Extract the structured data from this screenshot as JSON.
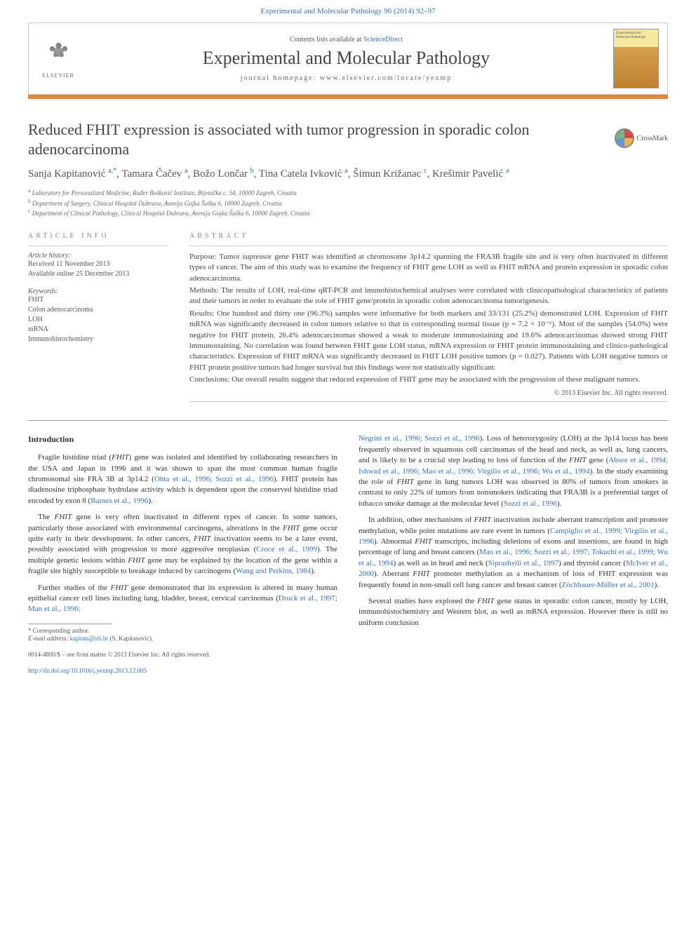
{
  "top_link": "Experimental and Molecular Pathology 96 (2014) 92–97",
  "header": {
    "contents_prefix": "Contents lists available at ",
    "contents_link": "ScienceDirect",
    "journal_name": "Experimental and Molecular Pathology",
    "homepage_label": "journal homepage: www.elsevier.com/locate/yexmp",
    "elsevier_label": "ELSEVIER",
    "cover_title": "Experimental and Molecular Pathology"
  },
  "article": {
    "title": "Reduced FHIT expression is associated with tumor progression in sporadic colon adenocarcinoma",
    "crossmark": "CrossMark",
    "authors_html": "Sanja Kapitanović <sup>a,*</sup>, Tamara Čačev <sup>a</sup>, Božo Lončar <sup>b</sup>, Tina Catela Ivković <sup>a</sup>, Šimun Križanac <sup>c</sup>, Krešimir Pavelić <sup>a</sup>",
    "affiliations": [
      {
        "sup": "a",
        "text": "Laboratory for Personalized Medicine, Ruđer Bošković Institute, Bijenička c. 54, 10000 Zagreb, Croatia"
      },
      {
        "sup": "b",
        "text": "Department of Surgery, Clinical Hospital Dubrava, Avenija Gojka Šuška 6, 10000 Zagreb, Croatia"
      },
      {
        "sup": "c",
        "text": "Department of Clinical Pathology, Clinical Hospital Dubrava, Avenija Gojka Šuška 6, 10000 Zagreb, Croatia"
      }
    ]
  },
  "meta": {
    "article_info_label": "article info",
    "abstract_label": "abstract",
    "history_label": "Article history:",
    "history": [
      "Received 11 November 2013",
      "Available online 25 December 2013"
    ],
    "keywords_label": "Keywords:",
    "keywords": [
      "FHIT",
      "Colon adenocarcinoma",
      "LOH",
      "mRNA",
      "Immunohistochemistry"
    ]
  },
  "abstract": {
    "purpose": "Purpose: Tumor supressor gene FHIT was identified at chromosome 3p14.2 spanning the FRA3B fragile site and is very often inactivated in different types of cancer. The aim of this study was to examine the frequency of FHIT gene LOH as well as FHIT mRNA and protein expression in sporadic colon adenocarcinoma.",
    "methods": "Methods: The results of LOH, real-time qRT-PCR and imunohistochemical analyses were correlated with clinicopathological characteristics of patients and their tumors in order to evaluate the role of FHIT gene/protein in sporadic colon adenocarcinoma tumorigenesis.",
    "results": "Results: One hundred and thirty one (96.3%) samples were informative for both markers and 33/131 (25.2%) demonstrated LOH. Expression of FHIT mRNA was significantly decreased in colon tumors relative to that in corresponding normal tissue (p = 7.2 × 10⁻⁶). Most of the samples (54.0%) were negative for FHIT protein, 26.4% adenocarcinomas showed a weak to moderate immunostaining and 19.6% adenocarcinomas showed strong FHIT immunostaining. No correlation was found between FHIT gene LOH status, mRNA expression or FHIT protein immunostaining and clinico-pathological characteristics. Expression of FHIT mRNA was significantly decreased in FHIT LOH positive tumors (p = 0.027). Patients with LOH negative tumors or FHIT protein positive tumors had longer survival but this findings were not statistically significant.",
    "conclusions": "Conclusions: Our overall results suggest that reduced expression of FHIT gene may be associated with the progression of these malignant tumors.",
    "copyright": "© 2013 Elsevier Inc. All rights reserved."
  },
  "body": {
    "intro_heading": "Introduction",
    "col1": {
      "p1_a": "Fragile histidine triad (",
      "p1_b": ") gene was isolated and identified by collaborating researchers in the USA and Japan in 1996 and it was shown to span the most common human fragile chromosomal site FRA 3B at 3p14.2 (",
      "p1_cite1": "Ohta et al., 1996; Sozzi et al., 1996",
      "p1_c": "). FHIT protein has diadenosine triphosphate hydrolase activity which is dependent upon the conserved histidine triad encoded by exon 8 (",
      "p1_cite2": "Barnes et al., 1996",
      "p1_d": ").",
      "p2_a": "The ",
      "p2_b": " gene is very often inactivated in different types of cancer. In some tumors, particularly those associated with environmental carcinogens, alterations in the ",
      "p2_c": " gene occur quite early in their development. In other cancers, ",
      "p2_d": " inactivation seems to be a later event, possibly associated with progression to more aggressive neoplasias (",
      "p2_cite1": "Croce et al., 1999",
      "p2_e": "). The multiple genetic lesions within ",
      "p2_f": " gene may be explained by the location of the gene within a fragile site highly susceptible to breakage induced by carcinogens (",
      "p2_cite2": "Wang and Perkins, 1984",
      "p2_g": ").",
      "p3_a": "Further studies of the ",
      "p3_b": " gene demonstrated that its expression is altered in many human epithelial cancer cell lines including lung, bladder, breast, cervical carcinomas (",
      "p3_cite1": "Druck et al., 1997; Man et al., 1996;"
    },
    "col2": {
      "p1_cite1": "Negrini et al., 1996; Sozzi et al., 1996",
      "p1_a": "). Loss of heterozygosity (LOH) at the 3p14 locus has been frequently observed in squamous cell carcinomas of the head and neck, as well as, lung cancers, and is likely to be a crucial step leading to loss of function of the ",
      "p1_b": " gene (",
      "p1_cite2": "Ahsee et al., 1994; Ishwad et al., 1996; Mao et al., 1996; Virgilio et al., 1996; Wu et al., 1994",
      "p1_c": "). In the study examining the role of ",
      "p1_d": " gene in lung tumors LOH was observed in 80% of tumors from smokers in contrast to only 22% of tumors from nonsmokers indicating that FRA3B is a preferential target of tobacco smoke damage at the molecular level (",
      "p1_cite3": "Sozzi et al., 1996",
      "p1_e": ").",
      "p2_a": "In addition, other mechanisms of ",
      "p2_b": " inactivation include aberrant transcription and promoter methylation, while point mutations are rare event in tumors (",
      "p2_cite1": "Campiglio et al., 1999; Virgilio et al., 1996",
      "p2_c": "). Abnormal ",
      "p2_d": " transcripts, including deletions of exons and insertions, are found in high percentage of lung and breast cancers (",
      "p2_cite2": "Mao et al., 1996; Sozzi et al., 1997; Tokuchi et al., 1999; Wu et al., 1994",
      "p2_e": ") as well as in head and neck (",
      "p2_cite3": "Siprashvili et al., 1997",
      "p2_f": ") and thyroid cancer (",
      "p2_cite4": "McIver et al., 2000",
      "p2_g": "). Aberrant ",
      "p2_h": " promoter methylation as a mechanism of loss of FHIT expression was frequently found in non-small cell lung cancer and breast cancer (",
      "p2_cite5": "Zöchbauer-Müller et al., 2001",
      "p2_i": ").",
      "p3_a": "Several studies have explored the ",
      "p3_b": " gene status in sporadic colon cancer, mostly by LOH, immunohistochemistry and Western blot, as well as mRNA expression. However there is still no uniform conclusion"
    }
  },
  "footnote": {
    "corresponding": "* Corresponding author.",
    "email_label": "E-mail address: ",
    "email": "kapitan@irb.hr",
    "email_suffix": " (S. Kapitanović)."
  },
  "footer": {
    "line1": "0014-4800/$ – see front matter © 2013 Elsevier Inc. All rights reserved.",
    "doi": "http://dx.doi.org/10.1016/j.yexmp.2013.12.005"
  },
  "colors": {
    "link": "#3b6fb6",
    "orange": "#e8833a",
    "text": "#333333",
    "muted": "#666666"
  }
}
